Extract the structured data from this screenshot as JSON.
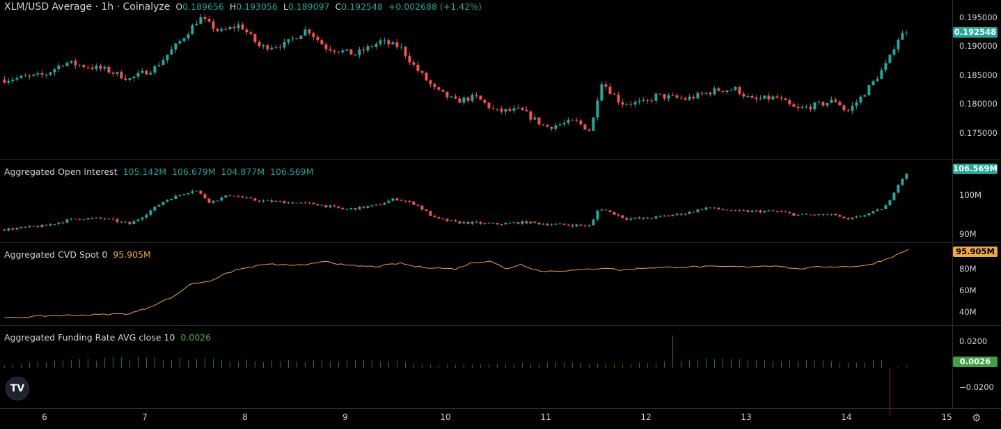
{
  "header": {
    "symbol": "XLM/USD Average · 1h · Coinalyze",
    "o_label": "O",
    "o_value": "0.189656",
    "h_label": "H",
    "h_value": "0.193056",
    "l_label": "L",
    "l_value": "0.189097",
    "c_label": "C",
    "c_value": "0.192548",
    "change": "+0.002688 (+1.42%)"
  },
  "panes": {
    "oi": {
      "label": "Aggregated Open Interest",
      "v1": "105.142M",
      "v2": "106.679M",
      "v3": "104.877M",
      "v4": "106.569M",
      "badge": "106.569M"
    },
    "cvd": {
      "label": "Aggregated CVD Spot 0",
      "value": "95.905M",
      "badge": "95.905M"
    },
    "fr": {
      "label": "Aggregated Funding Rate AVG close 10",
      "value": "0.0026",
      "badge": "0.0026"
    }
  },
  "price_axis": {
    "ticks": [
      "0.195000",
      "0.190000",
      "0.185000",
      "0.180000",
      "0.175000"
    ],
    "badge": "0.192548"
  },
  "oi_axis": {
    "ticks": [
      "100M",
      "90M"
    ]
  },
  "cvd_axis": {
    "ticks": [
      "80M",
      "60M",
      "40M"
    ]
  },
  "fr_axis": {
    "ticks": [
      "0.0200",
      "−0.0200"
    ]
  },
  "x_axis": {
    "ticks": [
      "6",
      "7",
      "8",
      "9",
      "10",
      "11",
      "12",
      "13",
      "14",
      "15"
    ]
  },
  "colors": {
    "up": "#26a69a",
    "down": "#ef5350",
    "cvd": "#f0a64a",
    "funding_pos": "#2e7d32",
    "funding_neg": "#b71c1c"
  },
  "chart_data": [
    {
      "type": "candlestick",
      "title": "XLM/USD Average · 1h · Coinalyze",
      "x_unit": "day of month",
      "x_range": [
        5.6,
        15
      ],
      "ylim": [
        0.1715,
        0.1962
      ],
      "grid": false,
      "anchors": [
        {
          "x": 5.6,
          "y": 0.1837
        },
        {
          "x": 6.0,
          "y": 0.1845
        },
        {
          "x": 6.2,
          "y": 0.1868
        },
        {
          "x": 6.6,
          "y": 0.1855
        },
        {
          "x": 6.85,
          "y": 0.1838
        },
        {
          "x": 7.1,
          "y": 0.1858
        },
        {
          "x": 7.35,
          "y": 0.1905
        },
        {
          "x": 7.55,
          "y": 0.1948
        },
        {
          "x": 7.75,
          "y": 0.1922
        },
        {
          "x": 7.95,
          "y": 0.1935
        },
        {
          "x": 8.15,
          "y": 0.1895
        },
        {
          "x": 8.4,
          "y": 0.19
        },
        {
          "x": 8.62,
          "y": 0.1928
        },
        {
          "x": 8.8,
          "y": 0.1895
        },
        {
          "x": 9.1,
          "y": 0.1882
        },
        {
          "x": 9.35,
          "y": 0.1905
        },
        {
          "x": 9.55,
          "y": 0.1895
        },
        {
          "x": 9.7,
          "y": 0.1858
        },
        {
          "x": 9.9,
          "y": 0.1818
        },
        {
          "x": 10.1,
          "y": 0.1798
        },
        {
          "x": 10.3,
          "y": 0.1806
        },
        {
          "x": 10.5,
          "y": 0.178
        },
        {
          "x": 10.75,
          "y": 0.1782
        },
        {
          "x": 11.0,
          "y": 0.1752
        },
        {
          "x": 11.3,
          "y": 0.1762
        },
        {
          "x": 11.45,
          "y": 0.1745
        },
        {
          "x": 11.55,
          "y": 0.1835
        },
        {
          "x": 11.75,
          "y": 0.1795
        },
        {
          "x": 12.0,
          "y": 0.1795
        },
        {
          "x": 12.1,
          "y": 0.1808
        },
        {
          "x": 12.4,
          "y": 0.1802
        },
        {
          "x": 12.7,
          "y": 0.1818
        },
        {
          "x": 12.9,
          "y": 0.182
        },
        {
          "x": 13.05,
          "y": 0.18
        },
        {
          "x": 13.3,
          "y": 0.1805
        },
        {
          "x": 13.5,
          "y": 0.1783
        },
        {
          "x": 13.75,
          "y": 0.1793
        },
        {
          "x": 13.9,
          "y": 0.18
        },
        {
          "x": 14.0,
          "y": 0.1778
        },
        {
          "x": 14.12,
          "y": 0.18
        },
        {
          "x": 14.3,
          "y": 0.184
        },
        {
          "x": 14.42,
          "y": 0.187
        },
        {
          "x": 14.5,
          "y": 0.1908
        },
        {
          "x": 14.6,
          "y": 0.1925
        }
      ]
    },
    {
      "type": "candlestick",
      "title": "Aggregated Open Interest",
      "x_range": [
        5.6,
        15
      ],
      "ylim": [
        89000000,
        108500000
      ],
      "anchors": [
        {
          "x": 5.6,
          "y": 91000000
        },
        {
          "x": 6.0,
          "y": 92000000
        },
        {
          "x": 6.3,
          "y": 94000000
        },
        {
          "x": 6.6,
          "y": 94000000
        },
        {
          "x": 6.85,
          "y": 92500000
        },
        {
          "x": 7.0,
          "y": 95000000
        },
        {
          "x": 7.2,
          "y": 99000000
        },
        {
          "x": 7.5,
          "y": 102000000
        },
        {
          "x": 7.65,
          "y": 98500000
        },
        {
          "x": 7.85,
          "y": 100500000
        },
        {
          "x": 8.1,
          "y": 99000000
        },
        {
          "x": 8.4,
          "y": 98500000
        },
        {
          "x": 8.7,
          "y": 98000000
        },
        {
          "x": 9.0,
          "y": 96500000
        },
        {
          "x": 9.3,
          "y": 97500000
        },
        {
          "x": 9.5,
          "y": 99500000
        },
        {
          "x": 9.7,
          "y": 98000000
        },
        {
          "x": 9.9,
          "y": 94000000
        },
        {
          "x": 10.1,
          "y": 93000000
        },
        {
          "x": 10.5,
          "y": 92500000
        },
        {
          "x": 10.8,
          "y": 93000000
        },
        {
          "x": 11.0,
          "y": 92500000
        },
        {
          "x": 11.45,
          "y": 92000000
        },
        {
          "x": 11.53,
          "y": 97000000
        },
        {
          "x": 11.8,
          "y": 94000000
        },
        {
          "x": 12.0,
          "y": 94000000
        },
        {
          "x": 12.4,
          "y": 95500000
        },
        {
          "x": 12.6,
          "y": 97000000
        },
        {
          "x": 12.9,
          "y": 96000000
        },
        {
          "x": 13.3,
          "y": 96000000
        },
        {
          "x": 13.5,
          "y": 95000000
        },
        {
          "x": 13.9,
          "y": 95000000
        },
        {
          "x": 14.0,
          "y": 93500000
        },
        {
          "x": 14.3,
          "y": 96000000
        },
        {
          "x": 14.42,
          "y": 98000000
        },
        {
          "x": 14.5,
          "y": 103000000
        },
        {
          "x": 14.6,
          "y": 106500000
        }
      ]
    },
    {
      "type": "line",
      "title": "Aggregated CVD Spot 0",
      "x_range": [
        5.6,
        15
      ],
      "ylim": [
        34000000,
        97000000
      ],
      "series": [
        {
          "values": [
            [
              5.6,
              37000000
            ],
            [
              6.0,
              39000000
            ],
            [
              6.5,
              40000000
            ],
            [
              6.85,
              41000000
            ],
            [
              7.0,
              45000000
            ],
            [
              7.3,
              56000000
            ],
            [
              7.45,
              66000000
            ],
            [
              7.65,
              69000000
            ],
            [
              7.9,
              78000000
            ],
            [
              8.2,
              83000000
            ],
            [
              8.6,
              82000000
            ],
            [
              8.8,
              86000000
            ],
            [
              9.0,
              82000000
            ],
            [
              9.3,
              81000000
            ],
            [
              9.55,
              84000000
            ],
            [
              9.7,
              81000000
            ],
            [
              9.9,
              80000000
            ],
            [
              10.1,
              79000000
            ],
            [
              10.25,
              84000000
            ],
            [
              10.45,
              86000000
            ],
            [
              10.6,
              79000000
            ],
            [
              10.75,
              83000000
            ],
            [
              10.95,
              77000000
            ],
            [
              11.3,
              78000000
            ],
            [
              11.6,
              80000000
            ],
            [
              11.75,
              78000000
            ],
            [
              12.0,
              80000000
            ],
            [
              12.5,
              81000000
            ],
            [
              13.0,
              81000000
            ],
            [
              13.3,
              82000000
            ],
            [
              13.5,
              79000000
            ],
            [
              13.75,
              81000000
            ],
            [
              14.0,
              81000000
            ],
            [
              14.2,
              82000000
            ],
            [
              14.35,
              86000000
            ],
            [
              14.5,
              91000000
            ],
            [
              14.62,
              95900000
            ]
          ]
        }
      ]
    },
    {
      "type": "bar",
      "title": "Aggregated Funding Rate AVG close 10",
      "x_range": [
        5.6,
        15
      ],
      "ylim": [
        -0.032,
        0.032
      ],
      "series": [
        {
          "values": [
            [
              5.6,
              0.002
            ],
            [
              6.0,
              0.005
            ],
            [
              6.4,
              0.007
            ],
            [
              6.8,
              0.008
            ],
            [
              7.2,
              0.007
            ],
            [
              7.6,
              0.007
            ],
            [
              8.0,
              0.006
            ],
            [
              8.4,
              0.006
            ],
            [
              8.8,
              0.006
            ],
            [
              9.2,
              0.006
            ],
            [
              9.6,
              0.005
            ],
            [
              9.9,
              0.002
            ],
            [
              10.2,
              0.003
            ],
            [
              10.6,
              0.003
            ],
            [
              11.0,
              0.004
            ],
            [
              11.4,
              0.004
            ],
            [
              11.8,
              0.003
            ],
            [
              12.2,
              0.005
            ],
            [
              12.3,
              0.0245
            ],
            [
              12.5,
              0.007
            ],
            [
              12.9,
              0.007
            ],
            [
              13.3,
              0.006
            ],
            [
              13.7,
              0.006
            ],
            [
              14.0,
              0.004
            ],
            [
              14.3,
              0.006
            ],
            [
              14.45,
              -0.035
            ],
            [
              14.55,
              -0.002
            ],
            [
              14.62,
              0.0026
            ]
          ]
        }
      ]
    }
  ]
}
